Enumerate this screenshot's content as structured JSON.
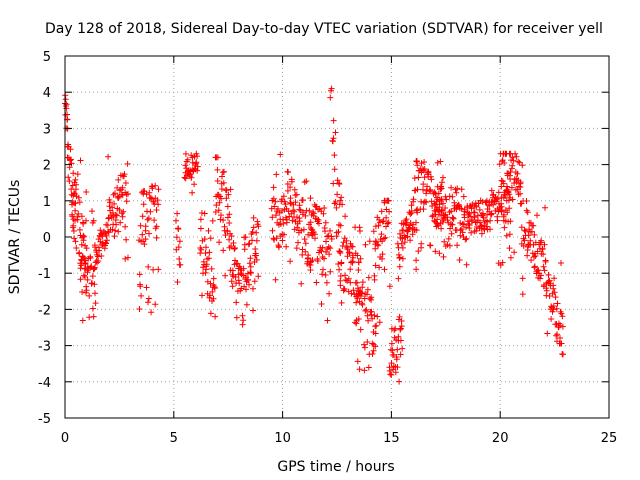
{
  "chart_data": {
    "type": "scatter",
    "title": "Day 128 of 2018, Sidereal Day-to-day VTEC variation (SDTVAR) for receiver yell",
    "xlabel": "GPS time / hours",
    "ylabel": "SDTVAR / TECUs",
    "xlim": [
      0,
      25
    ],
    "ylim": [
      -5,
      5
    ],
    "xticks": [
      0,
      5,
      10,
      15,
      20,
      25
    ],
    "yticks": [
      -5,
      -4,
      -3,
      -2,
      -1,
      0,
      1,
      2,
      3,
      4,
      5
    ],
    "grid": true,
    "marker": "+",
    "color": "#ff0000",
    "series": [
      {
        "name": "SDTVAR",
        "segments": [
          {
            "x0": 0.0,
            "x1": 0.12,
            "lo": 2.8,
            "hi": 4.0,
            "trend": [
              3.8,
              3.4
            ]
          },
          {
            "x0": 0.1,
            "x1": 0.5,
            "lo": -0.8,
            "hi": 3.2,
            "trend": [
              2.5,
              0.5
            ]
          },
          {
            "x0": 0.3,
            "x1": 1.0,
            "lo": -1.8,
            "hi": 2.4,
            "trend": [
              1.2,
              -0.8
            ]
          },
          {
            "x0": 0.7,
            "x1": 1.4,
            "lo": -2.5,
            "hi": 1.0,
            "trend": [
              -0.5,
              -1.4
            ]
          },
          {
            "x0": 1.3,
            "x1": 2.0,
            "lo": -1.0,
            "hi": 0.8,
            "trend": [
              -0.6,
              0.2
            ]
          },
          {
            "x0": 2.0,
            "x1": 2.9,
            "lo": -0.8,
            "hi": 2.3,
            "trend": [
              0.3,
              1.5
            ]
          },
          {
            "x0": 3.4,
            "x1": 4.3,
            "lo": -2.1,
            "hi": 1.5,
            "trend": [
              0.5,
              0.8
            ]
          },
          {
            "x0": 5.1,
            "x1": 5.3,
            "lo": -1.6,
            "hi": 0.9,
            "trend": [
              0.2,
              -0.3
            ]
          },
          {
            "x0": 5.5,
            "x1": 6.1,
            "lo": 1.1,
            "hi": 2.3,
            "trend": [
              1.9,
              2.1
            ]
          },
          {
            "x0": 6.2,
            "x1": 6.9,
            "lo": -2.7,
            "hi": 0.9,
            "trend": [
              0.2,
              -1.8
            ]
          },
          {
            "x0": 6.9,
            "x1": 7.6,
            "lo": -1.8,
            "hi": 2.2,
            "trend": [
              1.8,
              0.5
            ]
          },
          {
            "x0": 7.6,
            "x1": 8.2,
            "lo": -2.6,
            "hi": 0.7,
            "trend": [
              -0.5,
              -1.8
            ]
          },
          {
            "x0": 8.2,
            "x1": 8.9,
            "lo": -2.6,
            "hi": 0.9,
            "trend": [
              -0.8,
              -0.3
            ]
          },
          {
            "x0": 9.5,
            "x1": 10.2,
            "lo": -1.3,
            "hi": 2.4,
            "trend": [
              0.8,
              0.2
            ]
          },
          {
            "x0": 10.2,
            "x1": 11.4,
            "lo": -1.6,
            "hi": 1.9,
            "trend": [
              1.2,
              -0.4
            ]
          },
          {
            "x0": 11.3,
            "x1": 12.2,
            "lo": -2.6,
            "hi": 1.4,
            "trend": [
              0.4,
              -0.6
            ]
          },
          {
            "x0": 12.2,
            "x1": 12.7,
            "lo": -1.8,
            "hi": 4.1,
            "trend": [
              3.5,
              -0.5
            ]
          },
          {
            "x0": 12.6,
            "x1": 13.6,
            "lo": -2.4,
            "hi": 1.0,
            "trend": [
              -0.6,
              -1.2
            ]
          },
          {
            "x0": 13.4,
            "x1": 14.3,
            "lo": -4.2,
            "hi": 0.2,
            "trend": [
              -1.8,
              -2.6
            ]
          },
          {
            "x0": 14.2,
            "x1": 14.9,
            "lo": -2.7,
            "hi": 1.0,
            "trend": [
              -0.4,
              0.8
            ]
          },
          {
            "x0": 14.9,
            "x1": 15.5,
            "lo": -4.1,
            "hi": -1.2,
            "trend": [
              -3.6,
              -2.6
            ]
          },
          {
            "x0": 15.3,
            "x1": 16.2,
            "lo": -1.2,
            "hi": 1.3,
            "trend": [
              -0.6,
              0.9
            ]
          },
          {
            "x0": 16.1,
            "x1": 17.4,
            "lo": -0.4,
            "hi": 2.1,
            "trend": [
              1.8,
              0.6
            ]
          },
          {
            "x0": 17.0,
            "x1": 18.5,
            "lo": -0.8,
            "hi": 1.4,
            "trend": [
              0.9,
              0.4
            ]
          },
          {
            "x0": 18.5,
            "x1": 20.5,
            "lo": -0.8,
            "hi": 1.3,
            "trend": [
              0.4,
              0.9
            ]
          },
          {
            "x0": 20.0,
            "x1": 21.0,
            "lo": -0.8,
            "hi": 2.3,
            "trend": [
              2.0,
              1.5
            ]
          },
          {
            "x0": 21.0,
            "x1": 22.1,
            "lo": -1.6,
            "hi": 1.2,
            "trend": [
              0.2,
              -0.9
            ]
          },
          {
            "x0": 22.1,
            "x1": 22.9,
            "lo": -3.4,
            "hi": -0.6,
            "trend": [
              -1.2,
              -2.8
            ]
          }
        ]
      }
    ]
  }
}
